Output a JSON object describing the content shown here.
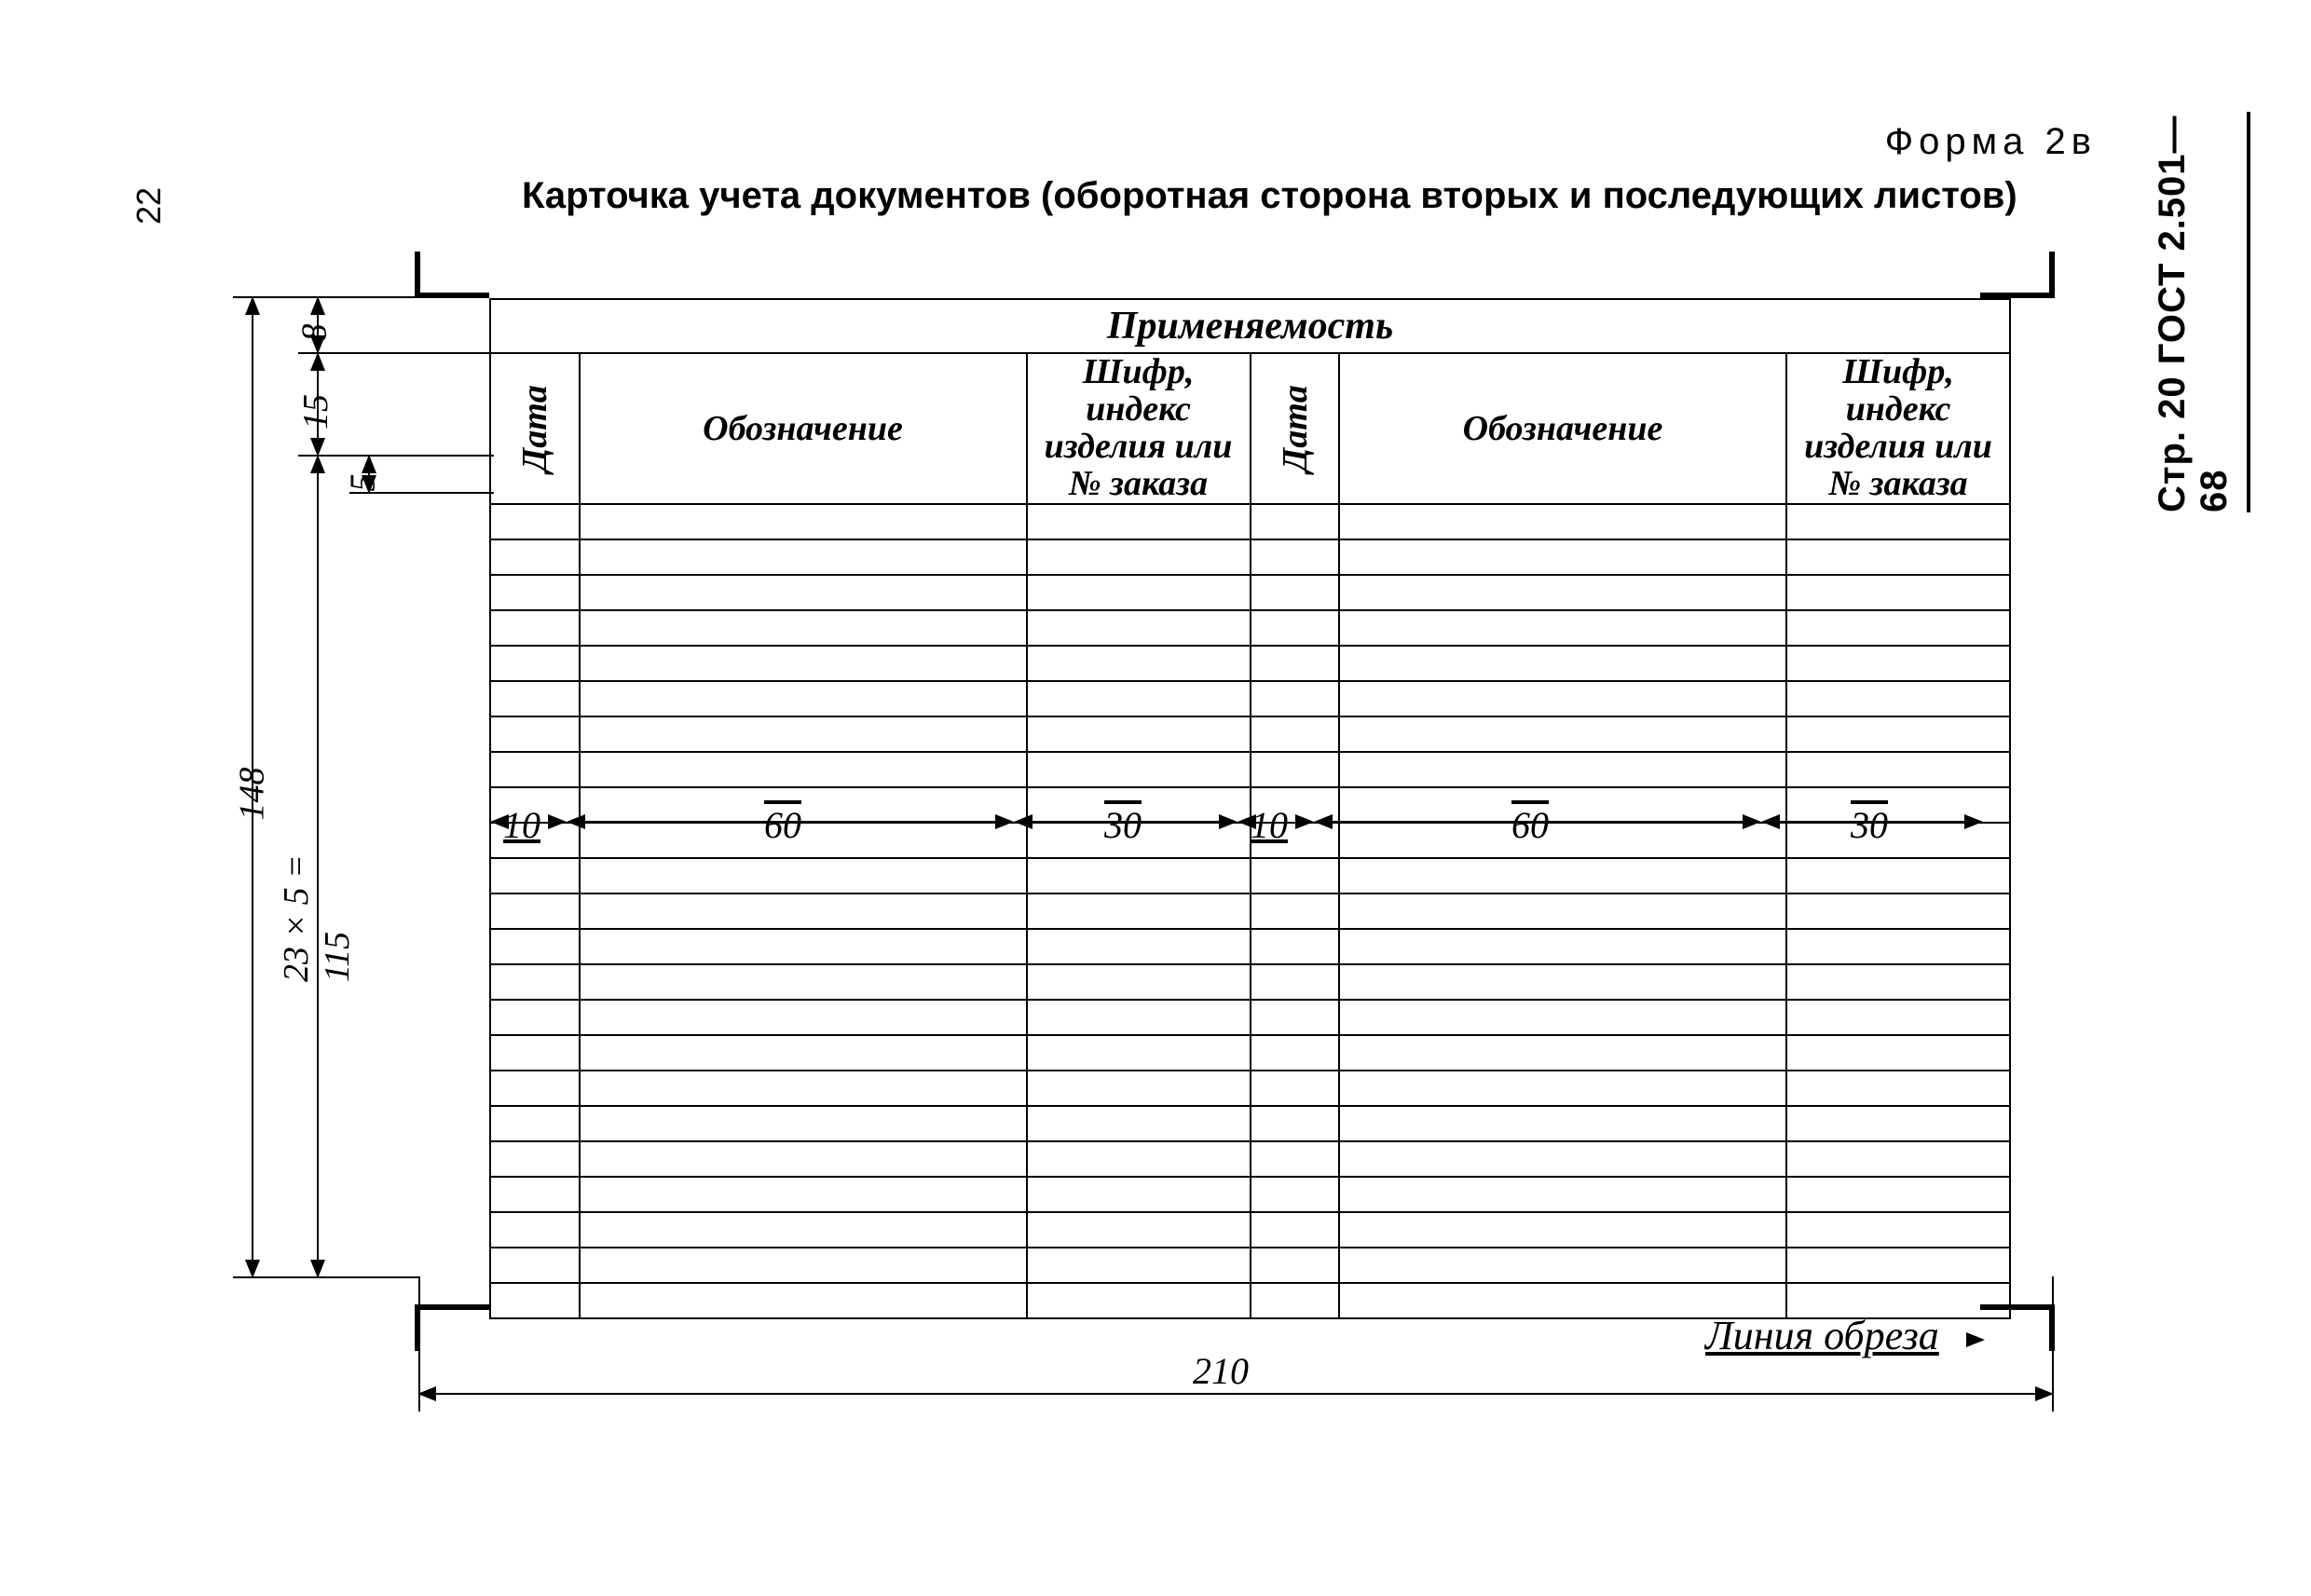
{
  "page_number_left": "22",
  "side_label": "Стр. 20 ГОСТ 2.501—68",
  "form_label": "Форма 2в",
  "title": "Карточка учета документов (оборотная сторона вторых и последующих листов)",
  "table": {
    "header_title": "Применяемость",
    "columns": {
      "date": "Дата",
      "designation": "Обозначение",
      "code": "Шифр, индекс изделия или № заказа"
    },
    "body_row_count": 23,
    "col_widths_mm": {
      "date": 10,
      "designation": 60,
      "code": 30
    }
  },
  "dimensions": {
    "height_total": "148",
    "header_title_h": "8",
    "header_row_h": "15",
    "body_row_h": "5",
    "body_rows_calc": "23 × 5 = 115",
    "width_total": "210",
    "col_date": "10",
    "col_designation": "60",
    "col_code": "30"
  },
  "cut_line_label": "Линия обреза",
  "style": {
    "border_color": "#000000",
    "background": "#ffffff",
    "italic_font": "Times New Roman",
    "bold_font": "Arial"
  }
}
